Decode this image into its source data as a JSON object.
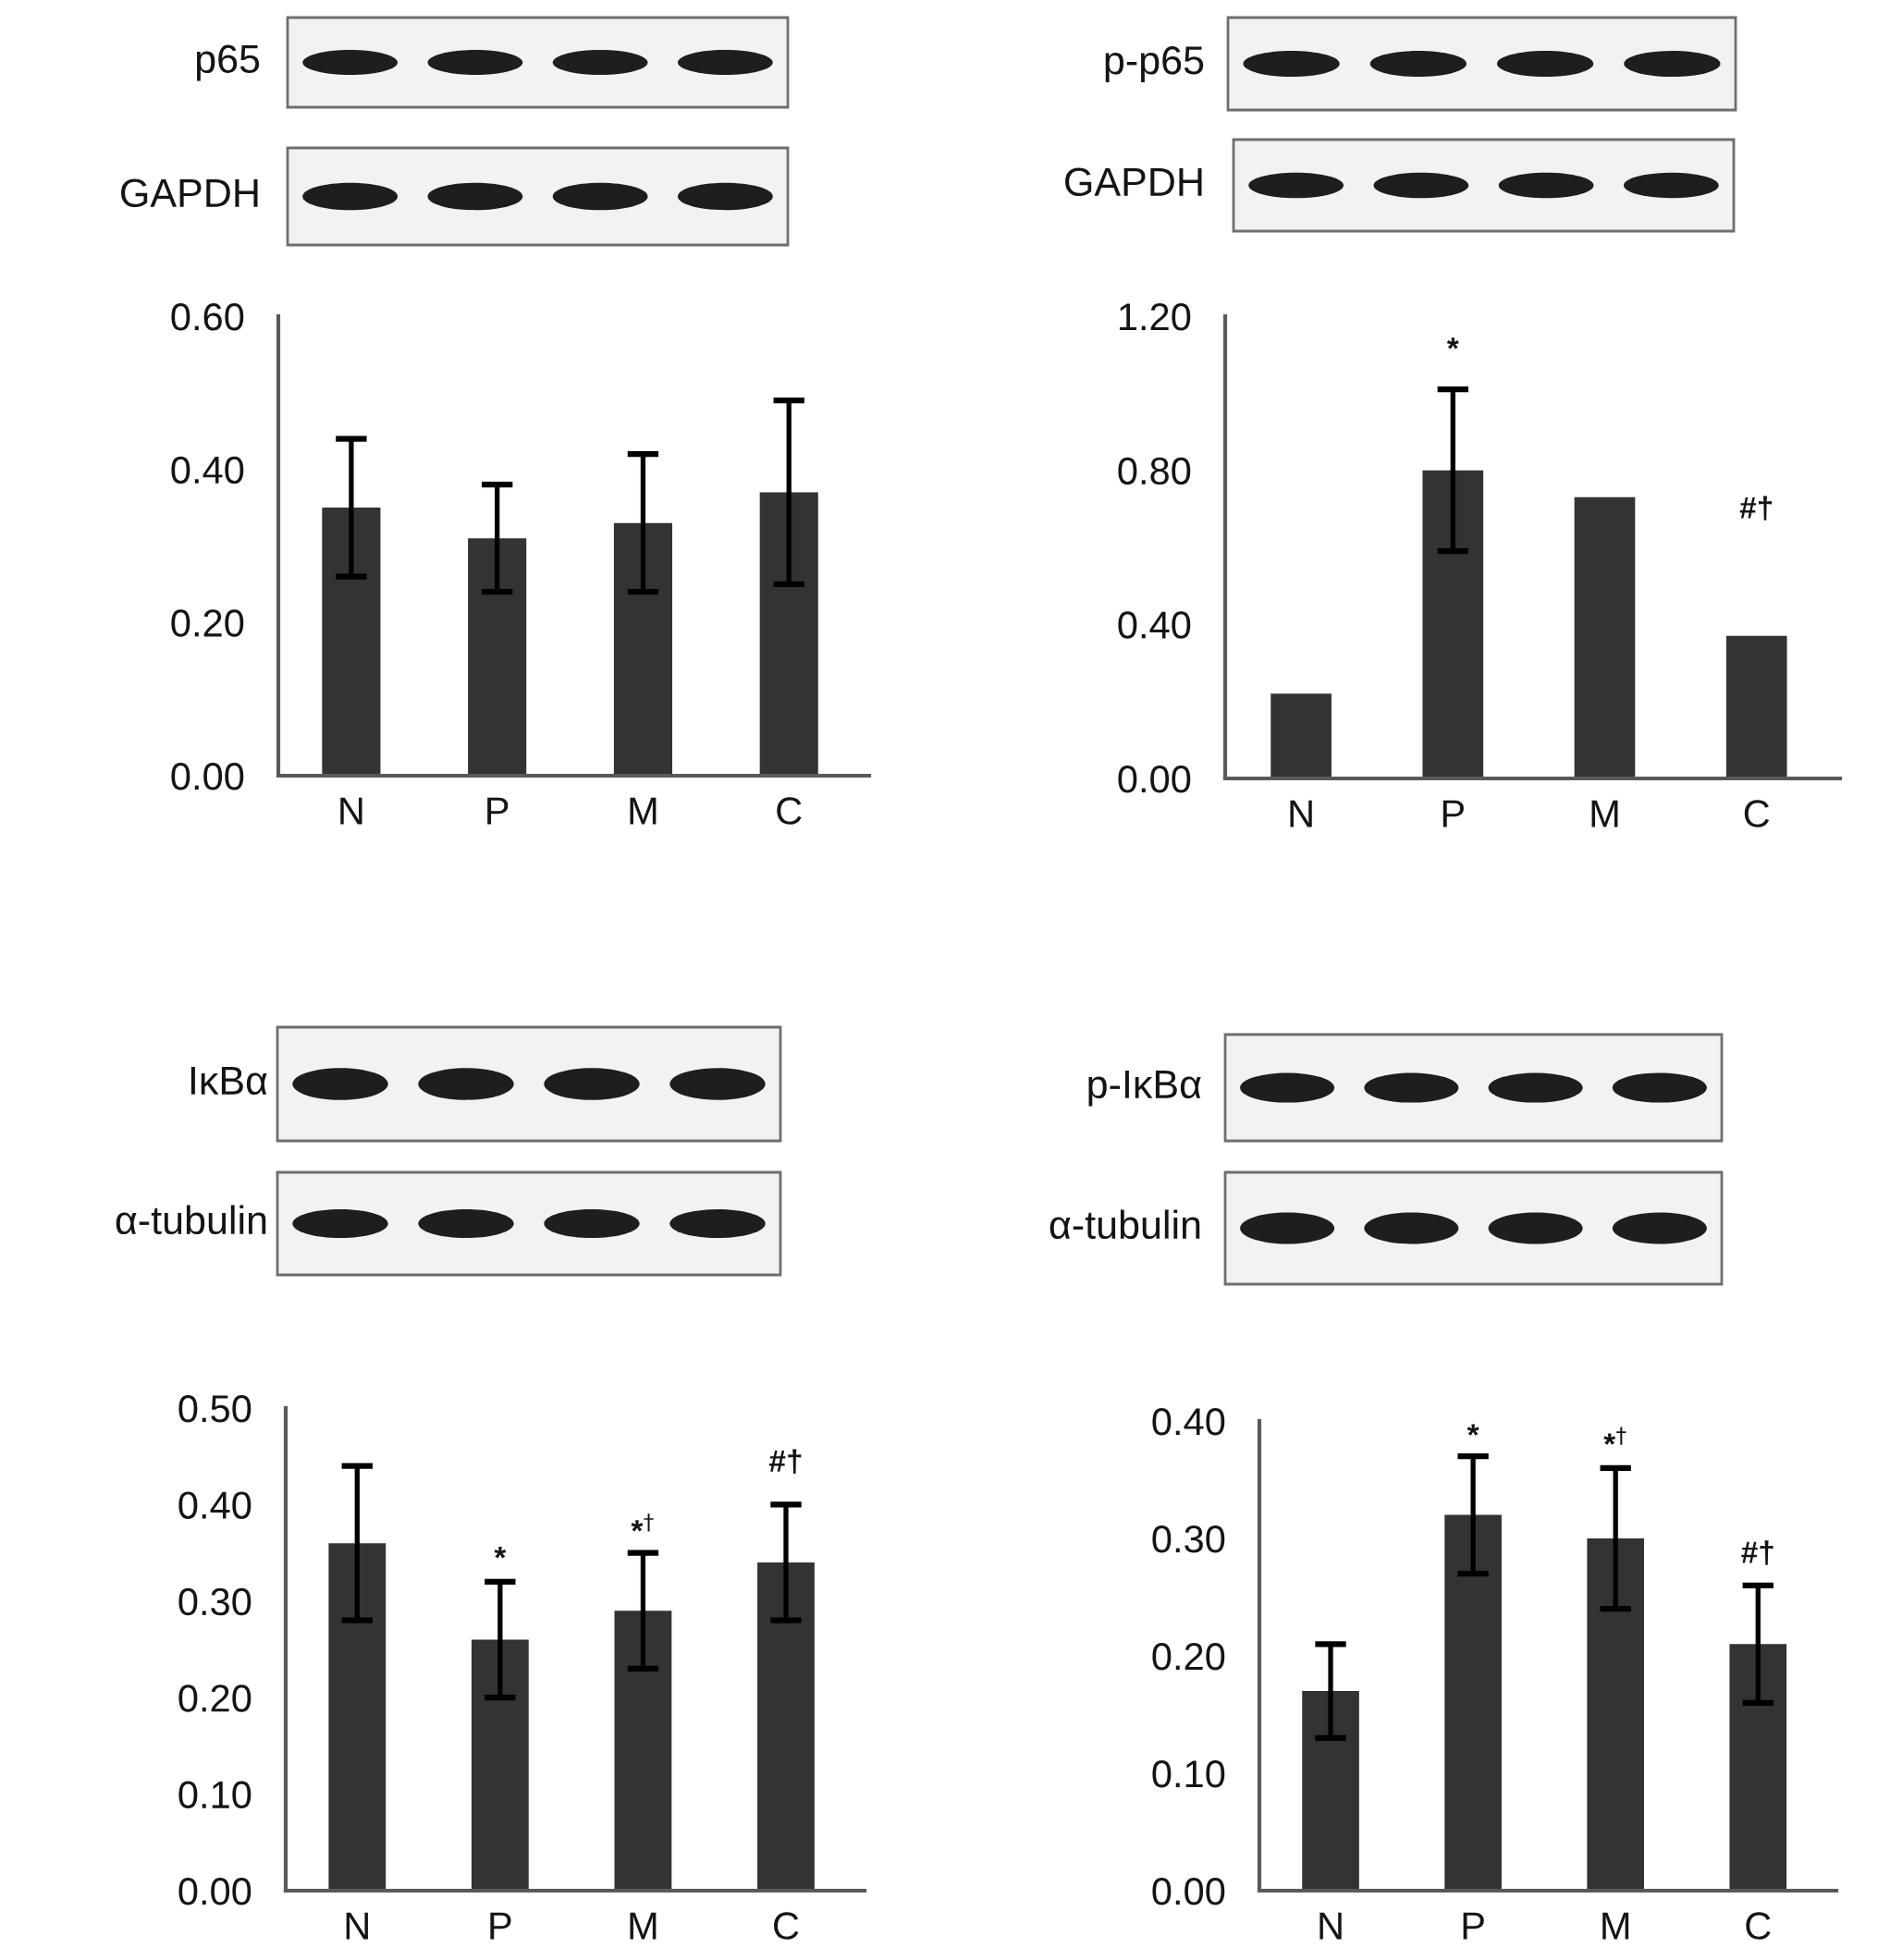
{
  "chart_data": [
    {
      "type": "bar",
      "categories": [
        "N",
        "P",
        "M",
        "C"
      ],
      "values": [
        0.35,
        0.31,
        0.33,
        0.37
      ],
      "errors": [
        0.09,
        0.07,
        0.09,
        0.12
      ],
      "color": "#333333",
      "ylim": [
        0,
        0.6
      ],
      "yticks": [
        {
          "value": 0,
          "label": "0.00"
        },
        {
          "value": 0.2,
          "label": "0.20"
        },
        {
          "value": 0.4,
          "label": "0.40"
        },
        {
          "value": 0.6,
          "label": "0.60"
        }
      ],
      "annotations": [
        "p65",
        "GAPDH"
      ]
    },
    {
      "type": "bar",
      "categories": [
        "N",
        "P",
        "M",
        "C"
      ],
      "values": [
        0.22,
        0.8,
        0.73,
        0.37
      ],
      "errors": [
        null,
        0.21,
        null,
        null
      ],
      "color": "#333333",
      "ylim": [
        0,
        1.2
      ],
      "yticks": [
        {
          "value": 0,
          "label": "0.00"
        },
        {
          "value": 0.4,
          "label": "0.40"
        },
        {
          "value": 0.8,
          "label": "0.80"
        },
        {
          "value": 1.2,
          "label": "1.20"
        }
      ],
      "annotations": [
        "p-p65",
        "GAPDH",
        "*",
        "#†"
      ]
    },
    {
      "type": "bar",
      "categories": [
        "N",
        "P",
        "M",
        "C"
      ],
      "values": [
        0.36,
        0.26,
        0.29,
        0.34
      ],
      "errors": [
        0.08,
        0.06,
        0.06,
        0.06
      ],
      "color": "#333333",
      "ylim": [
        0,
        0.5
      ],
      "yticks": [
        {
          "value": 0,
          "label": "0.00"
        },
        {
          "value": 0.1,
          "label": "0.10"
        },
        {
          "value": 0.2,
          "label": "0.20"
        },
        {
          "value": 0.3,
          "label": "0.30"
        },
        {
          "value": 0.4,
          "label": "0.40"
        },
        {
          "value": 0.5,
          "label": "0.50"
        }
      ],
      "annotations": [
        "IκBα",
        "α-tubulin",
        "*",
        "*$^{†}$",
        "#†"
      ]
    },
    {
      "type": "bar",
      "categories": [
        "N",
        "P",
        "M",
        "C"
      ],
      "values": [
        0.17,
        0.32,
        0.3,
        0.21
      ],
      "errors": [
        0.04,
        0.05,
        0.06,
        0.05
      ],
      "color": "#333333",
      "ylim": [
        0,
        0.4
      ],
      "yticks": [
        {
          "value": 0,
          "label": "0.00"
        },
        {
          "value": 0.1,
          "label": "0.10"
        },
        {
          "value": 0.2,
          "label": "0.20"
        },
        {
          "value": 0.3,
          "label": "0.30"
        },
        {
          "value": 0.4,
          "label": "0.40"
        }
      ],
      "annotations": [
        "p-IκBα",
        "α-tubulin",
        "*",
        "*$^{†}$",
        "#†"
      ]
    }
  ]
}
